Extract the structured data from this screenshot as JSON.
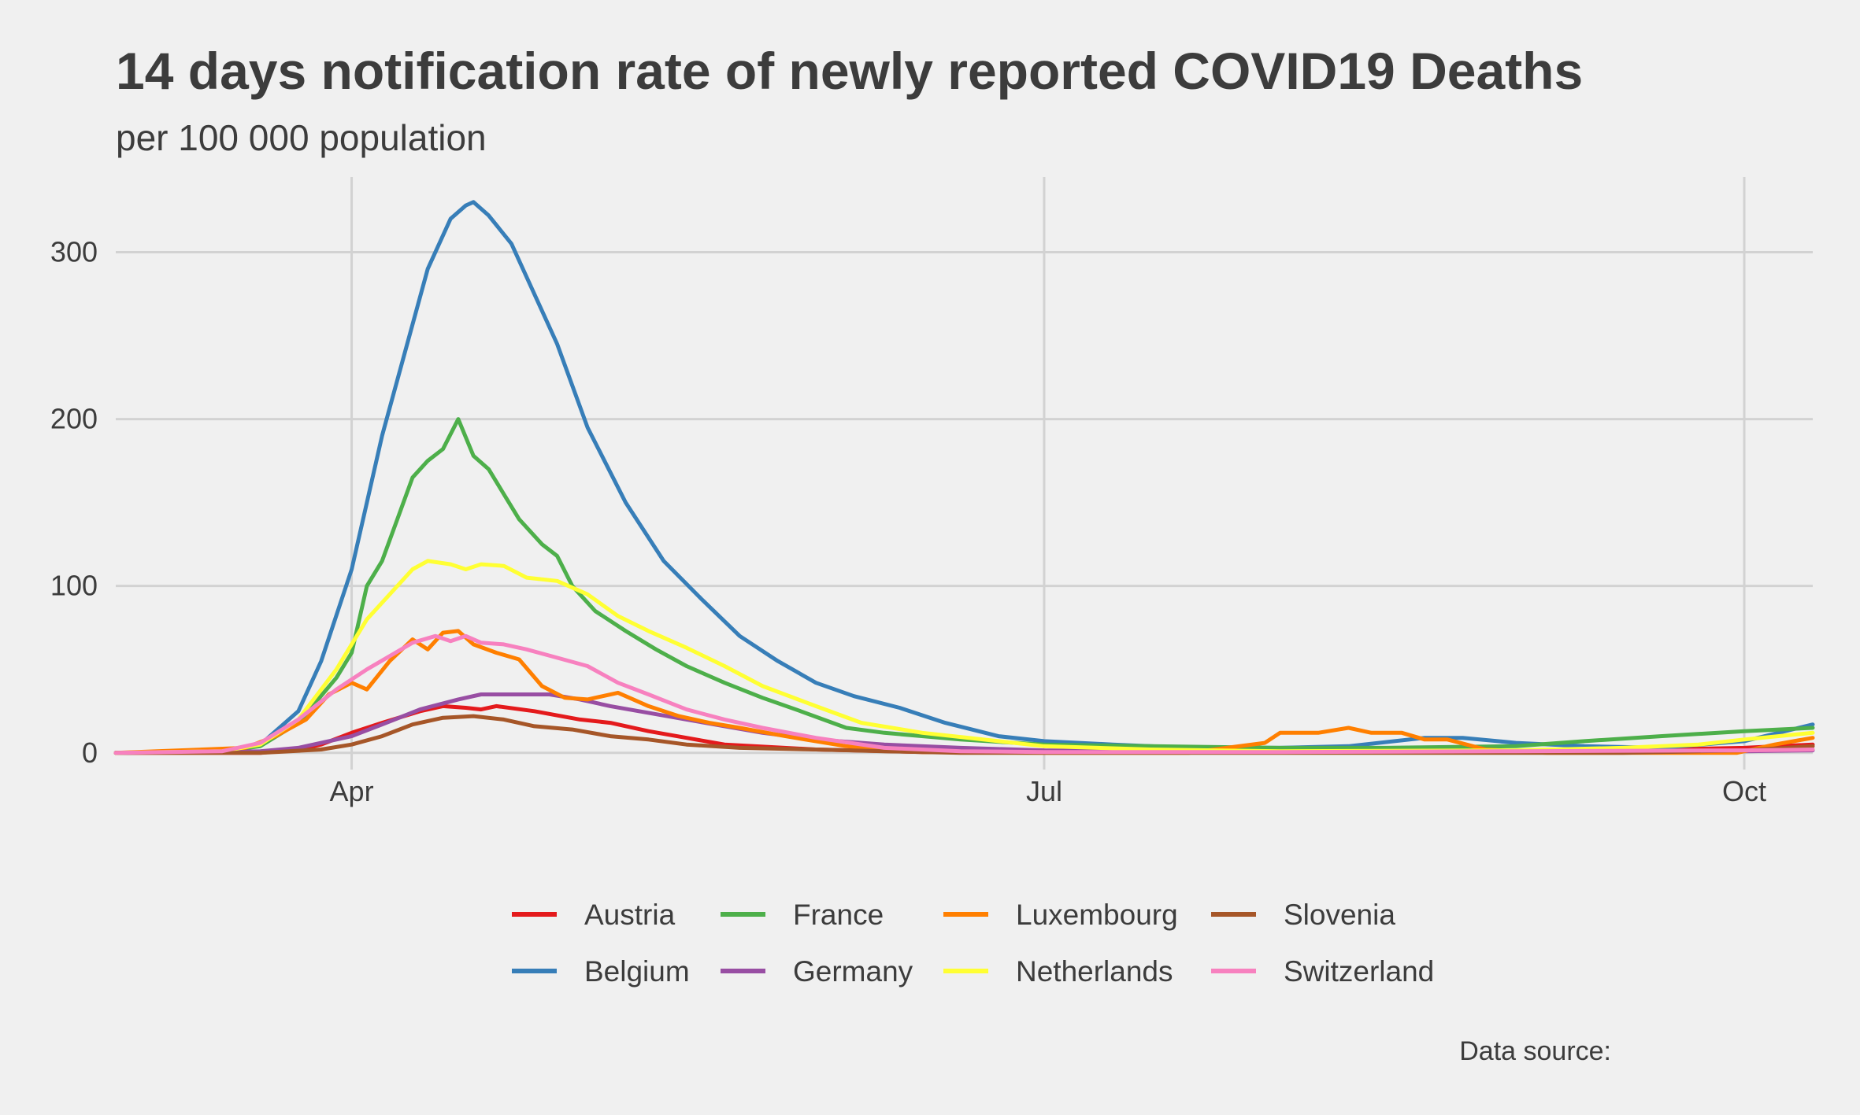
{
  "chart_data": {
    "type": "line",
    "title": "14 days notification rate of newly reported COVID19 Deaths",
    "subtitle": "per 100 000 population",
    "caption": "Data source:",
    "xlabel": "",
    "ylabel": "",
    "x_axis": {
      "type": "date",
      "range": [
        "2020-03-01",
        "2020-10-10"
      ],
      "ticks": [
        {
          "date": "2020-04-01",
          "label": "Apr"
        },
        {
          "date": "2020-07-01",
          "label": "Jul"
        },
        {
          "date": "2020-10-01",
          "label": "Oct"
        }
      ]
    },
    "y_axis": {
      "range": [
        -10,
        345
      ],
      "ticks": [
        0,
        100,
        200,
        300
      ]
    },
    "grid": true,
    "legend_position": "bottom",
    "series": [
      {
        "name": "Austria",
        "color": "#e41a1c",
        "points": [
          [
            "2020-03-01",
            0
          ],
          [
            "2020-03-20",
            0
          ],
          [
            "2020-03-25",
            2
          ],
          [
            "2020-03-28",
            5
          ],
          [
            "2020-04-01",
            12
          ],
          [
            "2020-04-05",
            18
          ],
          [
            "2020-04-10",
            25
          ],
          [
            "2020-04-13",
            28
          ],
          [
            "2020-04-16",
            27
          ],
          [
            "2020-04-18",
            26
          ],
          [
            "2020-04-20",
            28
          ],
          [
            "2020-04-25",
            25
          ],
          [
            "2020-05-01",
            20
          ],
          [
            "2020-05-05",
            18
          ],
          [
            "2020-05-10",
            13
          ],
          [
            "2020-05-15",
            9
          ],
          [
            "2020-05-20",
            5
          ],
          [
            "2020-06-01",
            2
          ],
          [
            "2020-06-15",
            0.5
          ],
          [
            "2020-07-01",
            0.3
          ],
          [
            "2020-08-15",
            0.5
          ],
          [
            "2020-09-15",
            1.5
          ],
          [
            "2020-10-01",
            3
          ],
          [
            "2020-10-10",
            5
          ]
        ]
      },
      {
        "name": "Belgium",
        "color": "#377eb8",
        "points": [
          [
            "2020-03-01",
            0
          ],
          [
            "2020-03-15",
            0.5
          ],
          [
            "2020-03-20",
            5
          ],
          [
            "2020-03-25",
            25
          ],
          [
            "2020-03-28",
            55
          ],
          [
            "2020-04-01",
            110
          ],
          [
            "2020-04-05",
            190
          ],
          [
            "2020-04-08",
            240
          ],
          [
            "2020-04-11",
            290
          ],
          [
            "2020-04-14",
            320
          ],
          [
            "2020-04-16",
            328
          ],
          [
            "2020-04-17",
            330
          ],
          [
            "2020-04-19",
            322
          ],
          [
            "2020-04-22",
            305
          ],
          [
            "2020-04-25",
            275
          ],
          [
            "2020-04-28",
            245
          ],
          [
            "2020-05-02",
            195
          ],
          [
            "2020-05-07",
            150
          ],
          [
            "2020-05-12",
            115
          ],
          [
            "2020-05-17",
            92
          ],
          [
            "2020-05-22",
            70
          ],
          [
            "2020-05-27",
            55
          ],
          [
            "2020-06-01",
            42
          ],
          [
            "2020-06-06",
            34
          ],
          [
            "2020-06-12",
            27
          ],
          [
            "2020-06-18",
            18
          ],
          [
            "2020-06-25",
            10
          ],
          [
            "2020-07-01",
            7
          ],
          [
            "2020-07-10",
            5
          ],
          [
            "2020-07-20",
            3
          ],
          [
            "2020-08-01",
            3
          ],
          [
            "2020-08-10",
            4
          ],
          [
            "2020-08-20",
            9
          ],
          [
            "2020-08-25",
            9
          ],
          [
            "2020-09-01",
            6
          ],
          [
            "2020-09-10",
            4
          ],
          [
            "2020-09-20",
            3
          ],
          [
            "2020-10-01",
            7
          ],
          [
            "2020-10-10",
            17
          ]
        ]
      },
      {
        "name": "France",
        "color": "#4daf4a",
        "points": [
          [
            "2020-03-01",
            0
          ],
          [
            "2020-03-15",
            1
          ],
          [
            "2020-03-20",
            4
          ],
          [
            "2020-03-25",
            18
          ],
          [
            "2020-03-30",
            45
          ],
          [
            "2020-04-01",
            60
          ],
          [
            "2020-04-03",
            100
          ],
          [
            "2020-04-05",
            115
          ],
          [
            "2020-04-07",
            140
          ],
          [
            "2020-04-09",
            165
          ],
          [
            "2020-04-11",
            175
          ],
          [
            "2020-04-13",
            182
          ],
          [
            "2020-04-15",
            200
          ],
          [
            "2020-04-17",
            178
          ],
          [
            "2020-04-19",
            170
          ],
          [
            "2020-04-21",
            155
          ],
          [
            "2020-04-23",
            140
          ],
          [
            "2020-04-26",
            125
          ],
          [
            "2020-04-28",
            118
          ],
          [
            "2020-04-30",
            100
          ],
          [
            "2020-05-03",
            85
          ],
          [
            "2020-05-07",
            73
          ],
          [
            "2020-05-11",
            62
          ],
          [
            "2020-05-15",
            52
          ],
          [
            "2020-05-20",
            42
          ],
          [
            "2020-05-25",
            33
          ],
          [
            "2020-05-30",
            25
          ],
          [
            "2020-06-05",
            15
          ],
          [
            "2020-06-10",
            12
          ],
          [
            "2020-06-20",
            8
          ],
          [
            "2020-07-01",
            5
          ],
          [
            "2020-07-15",
            4
          ],
          [
            "2020-08-01",
            3
          ],
          [
            "2020-08-15",
            3
          ],
          [
            "2020-09-01",
            4
          ],
          [
            "2020-09-10",
            7
          ],
          [
            "2020-09-20",
            10
          ],
          [
            "2020-10-01",
            13
          ],
          [
            "2020-10-10",
            15
          ]
        ]
      },
      {
        "name": "Germany",
        "color": "#984ea3",
        "points": [
          [
            "2020-03-01",
            0
          ],
          [
            "2020-03-20",
            1
          ],
          [
            "2020-03-25",
            3
          ],
          [
            "2020-04-01",
            10
          ],
          [
            "2020-04-05",
            17
          ],
          [
            "2020-04-10",
            26
          ],
          [
            "2020-04-15",
            32
          ],
          [
            "2020-04-18",
            35
          ],
          [
            "2020-04-22",
            35
          ],
          [
            "2020-04-27",
            35
          ],
          [
            "2020-05-01",
            32
          ],
          [
            "2020-05-05",
            28
          ],
          [
            "2020-05-10",
            24
          ],
          [
            "2020-05-15",
            20
          ],
          [
            "2020-05-20",
            16
          ],
          [
            "2020-05-25",
            12
          ],
          [
            "2020-06-01",
            8
          ],
          [
            "2020-06-10",
            5
          ],
          [
            "2020-06-20",
            3
          ],
          [
            "2020-07-01",
            1.5
          ],
          [
            "2020-08-01",
            0.6
          ],
          [
            "2020-09-01",
            0.5
          ],
          [
            "2020-10-01",
            1
          ],
          [
            "2020-10-10",
            1.5
          ]
        ]
      },
      {
        "name": "Luxembourg",
        "color": "#ff7f00",
        "points": [
          [
            "2020-03-01",
            0
          ],
          [
            "2020-03-18",
            3
          ],
          [
            "2020-03-22",
            10
          ],
          [
            "2020-03-26",
            20
          ],
          [
            "2020-03-29",
            35
          ],
          [
            "2020-04-01",
            42
          ],
          [
            "2020-04-03",
            38
          ],
          [
            "2020-04-06",
            55
          ],
          [
            "2020-04-09",
            68
          ],
          [
            "2020-04-11",
            62
          ],
          [
            "2020-04-13",
            72
          ],
          [
            "2020-04-15",
            73
          ],
          [
            "2020-04-17",
            65
          ],
          [
            "2020-04-20",
            60
          ],
          [
            "2020-04-23",
            56
          ],
          [
            "2020-04-26",
            40
          ],
          [
            "2020-04-29",
            33
          ],
          [
            "2020-05-02",
            32
          ],
          [
            "2020-05-06",
            36
          ],
          [
            "2020-05-10",
            28
          ],
          [
            "2020-05-14",
            22
          ],
          [
            "2020-05-18",
            18
          ],
          [
            "2020-05-22",
            15
          ],
          [
            "2020-05-28",
            10
          ],
          [
            "2020-06-05",
            4
          ],
          [
            "2020-06-15",
            0.5
          ],
          [
            "2020-07-01",
            0
          ],
          [
            "2020-07-20",
            0
          ],
          [
            "2020-07-25",
            3
          ],
          [
            "2020-07-30",
            6
          ],
          [
            "2020-08-01",
            12
          ],
          [
            "2020-08-06",
            12
          ],
          [
            "2020-08-10",
            15
          ],
          [
            "2020-08-13",
            12
          ],
          [
            "2020-08-17",
            12
          ],
          [
            "2020-08-20",
            8
          ],
          [
            "2020-08-23",
            8
          ],
          [
            "2020-08-28",
            2
          ],
          [
            "2020-09-05",
            0
          ],
          [
            "2020-09-30",
            0
          ],
          [
            "2020-10-05",
            5
          ],
          [
            "2020-10-10",
            9
          ]
        ]
      },
      {
        "name": "Netherlands",
        "color": "#ffff33",
        "points": [
          [
            "2020-03-01",
            0
          ],
          [
            "2020-03-15",
            1
          ],
          [
            "2020-03-20",
            5
          ],
          [
            "2020-03-25",
            20
          ],
          [
            "2020-03-30",
            50
          ],
          [
            "2020-04-03",
            80
          ],
          [
            "2020-04-06",
            95
          ],
          [
            "2020-04-09",
            110
          ],
          [
            "2020-04-11",
            115
          ],
          [
            "2020-04-14",
            113
          ],
          [
            "2020-04-16",
            110
          ],
          [
            "2020-04-18",
            113
          ],
          [
            "2020-04-21",
            112
          ],
          [
            "2020-04-24",
            105
          ],
          [
            "2020-04-28",
            103
          ],
          [
            "2020-05-02",
            95
          ],
          [
            "2020-05-06",
            82
          ],
          [
            "2020-05-10",
            73
          ],
          [
            "2020-05-15",
            63
          ],
          [
            "2020-05-20",
            52
          ],
          [
            "2020-05-25",
            40
          ],
          [
            "2020-06-01",
            28
          ],
          [
            "2020-06-07",
            18
          ],
          [
            "2020-06-15",
            12
          ],
          [
            "2020-06-25",
            7
          ],
          [
            "2020-07-01",
            4
          ],
          [
            "2020-07-15",
            2
          ],
          [
            "2020-08-01",
            1
          ],
          [
            "2020-09-01",
            1.5
          ],
          [
            "2020-09-15",
            3
          ],
          [
            "2020-09-25",
            5
          ],
          [
            "2020-10-01",
            8
          ],
          [
            "2020-10-10",
            12
          ]
        ]
      },
      {
        "name": "Slovenia",
        "color": "#a65628",
        "points": [
          [
            "2020-03-01",
            0
          ],
          [
            "2020-03-20",
            0
          ],
          [
            "2020-03-28",
            2
          ],
          [
            "2020-04-01",
            5
          ],
          [
            "2020-04-05",
            10
          ],
          [
            "2020-04-09",
            17
          ],
          [
            "2020-04-13",
            21
          ],
          [
            "2020-04-17",
            22
          ],
          [
            "2020-04-21",
            20
          ],
          [
            "2020-04-25",
            16
          ],
          [
            "2020-04-30",
            14
          ],
          [
            "2020-05-05",
            10
          ],
          [
            "2020-05-10",
            8
          ],
          [
            "2020-05-15",
            5
          ],
          [
            "2020-05-22",
            3
          ],
          [
            "2020-06-01",
            2
          ],
          [
            "2020-06-10",
            1
          ],
          [
            "2020-06-20",
            0
          ],
          [
            "2020-07-01",
            0
          ],
          [
            "2020-08-15",
            0
          ],
          [
            "2020-09-15",
            0
          ],
          [
            "2020-10-01",
            1.5
          ],
          [
            "2020-10-10",
            4
          ]
        ]
      },
      {
        "name": "Switzerland",
        "color": "#f781bf",
        "points": [
          [
            "2020-03-01",
            0
          ],
          [
            "2020-03-15",
            1
          ],
          [
            "2020-03-20",
            6
          ],
          [
            "2020-03-25",
            20
          ],
          [
            "2020-03-30",
            38
          ],
          [
            "2020-04-03",
            50
          ],
          [
            "2020-04-06",
            58
          ],
          [
            "2020-04-09",
            66
          ],
          [
            "2020-04-12",
            70
          ],
          [
            "2020-04-14",
            67
          ],
          [
            "2020-04-16",
            70
          ],
          [
            "2020-04-18",
            66
          ],
          [
            "2020-04-21",
            65
          ],
          [
            "2020-04-24",
            62
          ],
          [
            "2020-04-28",
            57
          ],
          [
            "2020-05-02",
            52
          ],
          [
            "2020-05-06",
            42
          ],
          [
            "2020-05-10",
            35
          ],
          [
            "2020-05-15",
            26
          ],
          [
            "2020-05-20",
            20
          ],
          [
            "2020-05-25",
            15
          ],
          [
            "2020-06-01",
            9
          ],
          [
            "2020-06-10",
            3
          ],
          [
            "2020-06-20",
            1
          ],
          [
            "2020-07-01",
            0.5
          ],
          [
            "2020-08-01",
            0.5
          ],
          [
            "2020-09-01",
            1
          ],
          [
            "2020-10-01",
            1.5
          ],
          [
            "2020-10-10",
            2
          ]
        ]
      }
    ]
  }
}
